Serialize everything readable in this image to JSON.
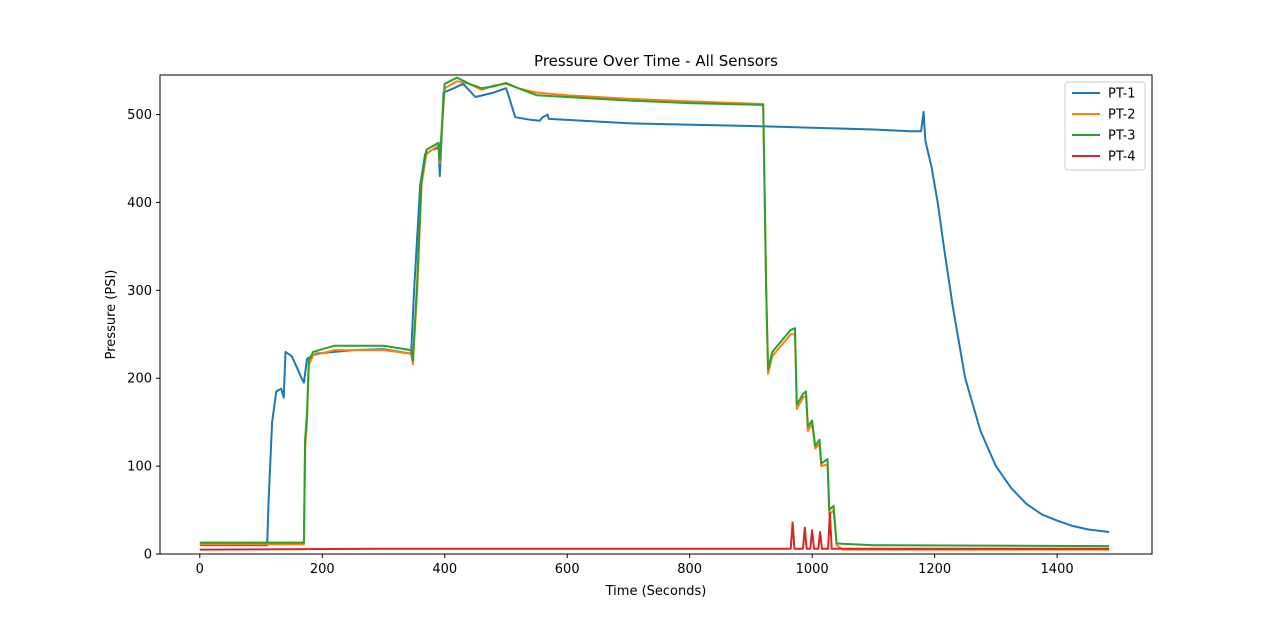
{
  "chart_data": {
    "type": "line",
    "title": "Pressure Over Time - All Sensors",
    "xlabel": "Time (Seconds)",
    "ylabel": "Pressure (PSI)",
    "xlim": [
      -65,
      1555
    ],
    "ylim": [
      0,
      545
    ],
    "xticks": [
      0,
      200,
      400,
      600,
      800,
      1000,
      1200,
      1400
    ],
    "yticks": [
      0,
      100,
      200,
      300,
      400,
      500
    ],
    "grid": false,
    "legend_position": "top-right",
    "series": [
      {
        "name": "PT-1",
        "color": "#1f77b4",
        "points": [
          [
            0,
            10
          ],
          [
            110,
            10
          ],
          [
            112,
            55
          ],
          [
            118,
            150
          ],
          [
            125,
            185
          ],
          [
            133,
            188
          ],
          [
            137,
            178
          ],
          [
            140,
            230
          ],
          [
            150,
            225
          ],
          [
            160,
            210
          ],
          [
            166,
            200
          ],
          [
            170,
            195
          ],
          [
            175,
            222
          ],
          [
            190,
            228
          ],
          [
            250,
            232
          ],
          [
            300,
            233
          ],
          [
            345,
            228
          ],
          [
            350,
            300
          ],
          [
            360,
            420
          ],
          [
            368,
            455
          ],
          [
            380,
            460
          ],
          [
            390,
            462
          ],
          [
            392,
            430
          ],
          [
            396,
            490
          ],
          [
            398,
            525
          ],
          [
            415,
            530
          ],
          [
            430,
            535
          ],
          [
            450,
            520
          ],
          [
            480,
            525
          ],
          [
            500,
            530
          ],
          [
            505,
            520
          ],
          [
            515,
            497
          ],
          [
            540,
            494
          ],
          [
            555,
            493
          ],
          [
            560,
            497
          ],
          [
            568,
            500
          ],
          [
            570,
            495
          ],
          [
            700,
            490
          ],
          [
            900,
            487
          ],
          [
            1000,
            485
          ],
          [
            1100,
            483
          ],
          [
            1160,
            481
          ],
          [
            1178,
            481
          ],
          [
            1182,
            503
          ],
          [
            1185,
            470
          ],
          [
            1195,
            440
          ],
          [
            1205,
            400
          ],
          [
            1215,
            350
          ],
          [
            1230,
            280
          ],
          [
            1250,
            200
          ],
          [
            1275,
            140
          ],
          [
            1300,
            100
          ],
          [
            1325,
            75
          ],
          [
            1350,
            57
          ],
          [
            1375,
            45
          ],
          [
            1400,
            38
          ],
          [
            1425,
            32
          ],
          [
            1450,
            28
          ],
          [
            1485,
            25
          ]
        ]
      },
      {
        "name": "PT-2",
        "color": "#ff7f0e",
        "points": [
          [
            0,
            11
          ],
          [
            170,
            11
          ],
          [
            172,
            120
          ],
          [
            175,
            150
          ],
          [
            178,
            215
          ],
          [
            185,
            226
          ],
          [
            220,
            232
          ],
          [
            300,
            232
          ],
          [
            345,
            228
          ],
          [
            348,
            216
          ],
          [
            355,
            300
          ],
          [
            362,
            420
          ],
          [
            370,
            455
          ],
          [
            390,
            465
          ],
          [
            392,
            445
          ],
          [
            396,
            490
          ],
          [
            400,
            530
          ],
          [
            420,
            538
          ],
          [
            440,
            535
          ],
          [
            460,
            528
          ],
          [
            480,
            533
          ],
          [
            500,
            535
          ],
          [
            520,
            530
          ],
          [
            550,
            525
          ],
          [
            600,
            522
          ],
          [
            700,
            518
          ],
          [
            800,
            515
          ],
          [
            920,
            512
          ],
          [
            925,
            300
          ],
          [
            928,
            205
          ],
          [
            935,
            225
          ],
          [
            965,
            250
          ],
          [
            972,
            250
          ],
          [
            975,
            165
          ],
          [
            985,
            178
          ],
          [
            990,
            180
          ],
          [
            993,
            140
          ],
          [
            1000,
            148
          ],
          [
            1005,
            120
          ],
          [
            1012,
            125
          ],
          [
            1015,
            100
          ],
          [
            1025,
            102
          ],
          [
            1028,
            45
          ],
          [
            1035,
            50
          ],
          [
            1040,
            10
          ],
          [
            1050,
            5
          ],
          [
            1485,
            5
          ]
        ]
      },
      {
        "name": "PT-3",
        "color": "#2ca02c",
        "points": [
          [
            0,
            13
          ],
          [
            170,
            13
          ],
          [
            172,
            130
          ],
          [
            175,
            160
          ],
          [
            178,
            220
          ],
          [
            185,
            230
          ],
          [
            220,
            237
          ],
          [
            300,
            237
          ],
          [
            345,
            232
          ],
          [
            348,
            220
          ],
          [
            355,
            310
          ],
          [
            362,
            425
          ],
          [
            370,
            460
          ],
          [
            390,
            468
          ],
          [
            392,
            448
          ],
          [
            396,
            495
          ],
          [
            400,
            535
          ],
          [
            420,
            542
          ],
          [
            440,
            535
          ],
          [
            460,
            530
          ],
          [
            480,
            532
          ],
          [
            500,
            536
          ],
          [
            520,
            530
          ],
          [
            550,
            522
          ],
          [
            600,
            520
          ],
          [
            700,
            516
          ],
          [
            800,
            513
          ],
          [
            920,
            511
          ],
          [
            925,
            300
          ],
          [
            928,
            210
          ],
          [
            935,
            230
          ],
          [
            965,
            255
          ],
          [
            972,
            257
          ],
          [
            975,
            170
          ],
          [
            985,
            182
          ],
          [
            990,
            185
          ],
          [
            993,
            145
          ],
          [
            1000,
            152
          ],
          [
            1005,
            123
          ],
          [
            1012,
            130
          ],
          [
            1015,
            103
          ],
          [
            1025,
            108
          ],
          [
            1028,
            50
          ],
          [
            1035,
            55
          ],
          [
            1040,
            12
          ],
          [
            1100,
            10
          ],
          [
            1485,
            9
          ]
        ]
      },
      {
        "name": "PT-4",
        "color": "#d62728",
        "points": [
          [
            0,
            5
          ],
          [
            300,
            6
          ],
          [
            600,
            6
          ],
          [
            900,
            6
          ],
          [
            965,
            6
          ],
          [
            968,
            36
          ],
          [
            971,
            6
          ],
          [
            985,
            6
          ],
          [
            988,
            30
          ],
          [
            991,
            6
          ],
          [
            997,
            6
          ],
          [
            1000,
            27
          ],
          [
            1003,
            6
          ],
          [
            1010,
            6
          ],
          [
            1013,
            25
          ],
          [
            1016,
            6
          ],
          [
            1026,
            6
          ],
          [
            1029,
            47
          ],
          [
            1032,
            6
          ],
          [
            1100,
            6
          ],
          [
            1485,
            6
          ]
        ]
      }
    ]
  }
}
